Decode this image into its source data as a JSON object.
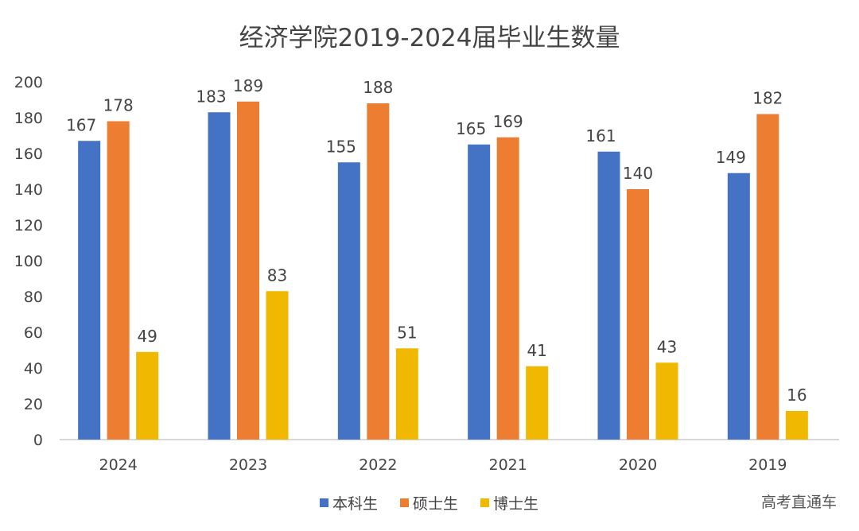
{
  "chart_data": {
    "type": "bar",
    "title": "经济学院2019-2024届毕业生数量",
    "categories": [
      "2024",
      "2023",
      "2022",
      "2021",
      "2020",
      "2019"
    ],
    "series": [
      {
        "name": "本科生",
        "color": "#4472C4",
        "values": [
          167,
          183,
          155,
          165,
          161,
          149
        ]
      },
      {
        "name": "硕士生",
        "color": "#ED7D31",
        "values": [
          178,
          189,
          188,
          169,
          140,
          182
        ]
      },
      {
        "name": "博士生",
        "color": "#F0B800",
        "values": [
          49,
          83,
          51,
          41,
          43,
          16
        ]
      }
    ],
    "ylim": [
      0,
      200
    ],
    "yticks": [
      0,
      20,
      40,
      60,
      80,
      100,
      120,
      140,
      160,
      180,
      200
    ],
    "grid": false,
    "legend": "bottom",
    "xlabel": "",
    "ylabel": ""
  },
  "watermark": "高考直通车"
}
